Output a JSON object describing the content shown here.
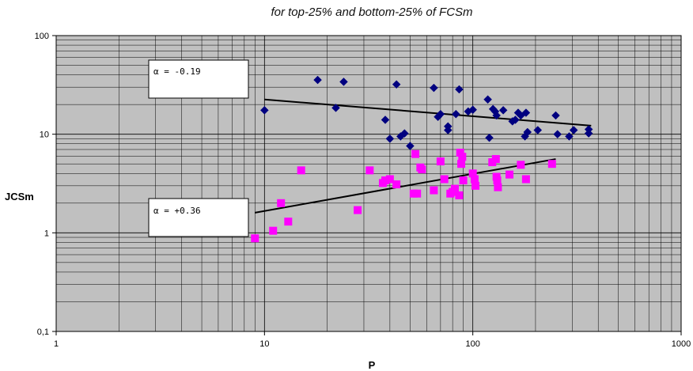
{
  "chart_data": {
    "type": "scatter",
    "title": "for top-25% and bottom-25% of FCSm",
    "xlabel": "P",
    "ylabel": "JCSm",
    "x_scale": "log",
    "y_scale": "log",
    "xlim": [
      1,
      1000
    ],
    "ylim": [
      0.1,
      100
    ],
    "x_tick_labels": [
      "1",
      "10",
      "100",
      "1000"
    ],
    "y_tick_labels": [
      "0,1",
      "1",
      "10",
      "100"
    ],
    "grid": true,
    "plot_background": "#c0c0c0",
    "series": [
      {
        "marker": "diamond",
        "color": "#000080",
        "points": [
          [
            10,
            17.5
          ],
          [
            18,
            35.5
          ],
          [
            22,
            18.5
          ],
          [
            24,
            34
          ],
          [
            38,
            14
          ],
          [
            40,
            9
          ],
          [
            43,
            32
          ],
          [
            45,
            9.5
          ],
          [
            47,
            10.2
          ],
          [
            50,
            7.6
          ],
          [
            65,
            29.5
          ],
          [
            68,
            15
          ],
          [
            70,
            16
          ],
          [
            76,
            12
          ],
          [
            76,
            11
          ],
          [
            83,
            16
          ],
          [
            86,
            28.5
          ],
          [
            95,
            17
          ],
          [
            100,
            17.7
          ],
          [
            118,
            22.5
          ],
          [
            120,
            9.2
          ],
          [
            125,
            18
          ],
          [
            128,
            17
          ],
          [
            130,
            15.5
          ],
          [
            140,
            17.5
          ],
          [
            155,
            13.5
          ],
          [
            160,
            14
          ],
          [
            165,
            16.5
          ],
          [
            170,
            15.5
          ],
          [
            178,
            9.5
          ],
          [
            180,
            16.5
          ],
          [
            183,
            10.5
          ],
          [
            205,
            11
          ],
          [
            250,
            15.5
          ],
          [
            255,
            10
          ],
          [
            290,
            9.5
          ],
          [
            305,
            11
          ],
          [
            360,
            11.2
          ],
          [
            360,
            10.2
          ]
        ],
        "trend": {
          "from": [
            10,
            22.5
          ],
          "to": [
            370,
            12.2
          ]
        }
      },
      {
        "marker": "square",
        "color": "#ff00ff",
        "points": [
          [
            9,
            0.88
          ],
          [
            11,
            1.05
          ],
          [
            12,
            2
          ],
          [
            13,
            1.3
          ],
          [
            15,
            4.3
          ],
          [
            28,
            1.7
          ],
          [
            32,
            4.3
          ],
          [
            37,
            3.2
          ],
          [
            38,
            3.4
          ],
          [
            40,
            3.5
          ],
          [
            43,
            3.1
          ],
          [
            52,
            2.5
          ],
          [
            53,
            6.3
          ],
          [
            54,
            2.5
          ],
          [
            56,
            4.6
          ],
          [
            57,
            4.4
          ],
          [
            65,
            2.7
          ],
          [
            70,
            5.3
          ],
          [
            73,
            3.5
          ],
          [
            78,
            2.5
          ],
          [
            80,
            2.6
          ],
          [
            82,
            2.8
          ],
          [
            86,
            2.4
          ],
          [
            87,
            6.5
          ],
          [
            88,
            5
          ],
          [
            89,
            5.9
          ],
          [
            90,
            3.4
          ],
          [
            100,
            4
          ],
          [
            102,
            3.5
          ],
          [
            103,
            3
          ],
          [
            124,
            5.2
          ],
          [
            129,
            5.6
          ],
          [
            130,
            3.7
          ],
          [
            131,
            3.4
          ],
          [
            132,
            2.9
          ],
          [
            150,
            3.9
          ],
          [
            170,
            4.9
          ],
          [
            180,
            3.5
          ],
          [
            240,
            5
          ]
        ],
        "trend": {
          "from": [
            9,
            1.6
          ],
          "to": [
            250,
            5.6
          ]
        }
      }
    ],
    "annotations": [
      {
        "text": "α = -0.19",
        "series": 0
      },
      {
        "text": "α = +0.36",
        "series": 1
      }
    ]
  }
}
